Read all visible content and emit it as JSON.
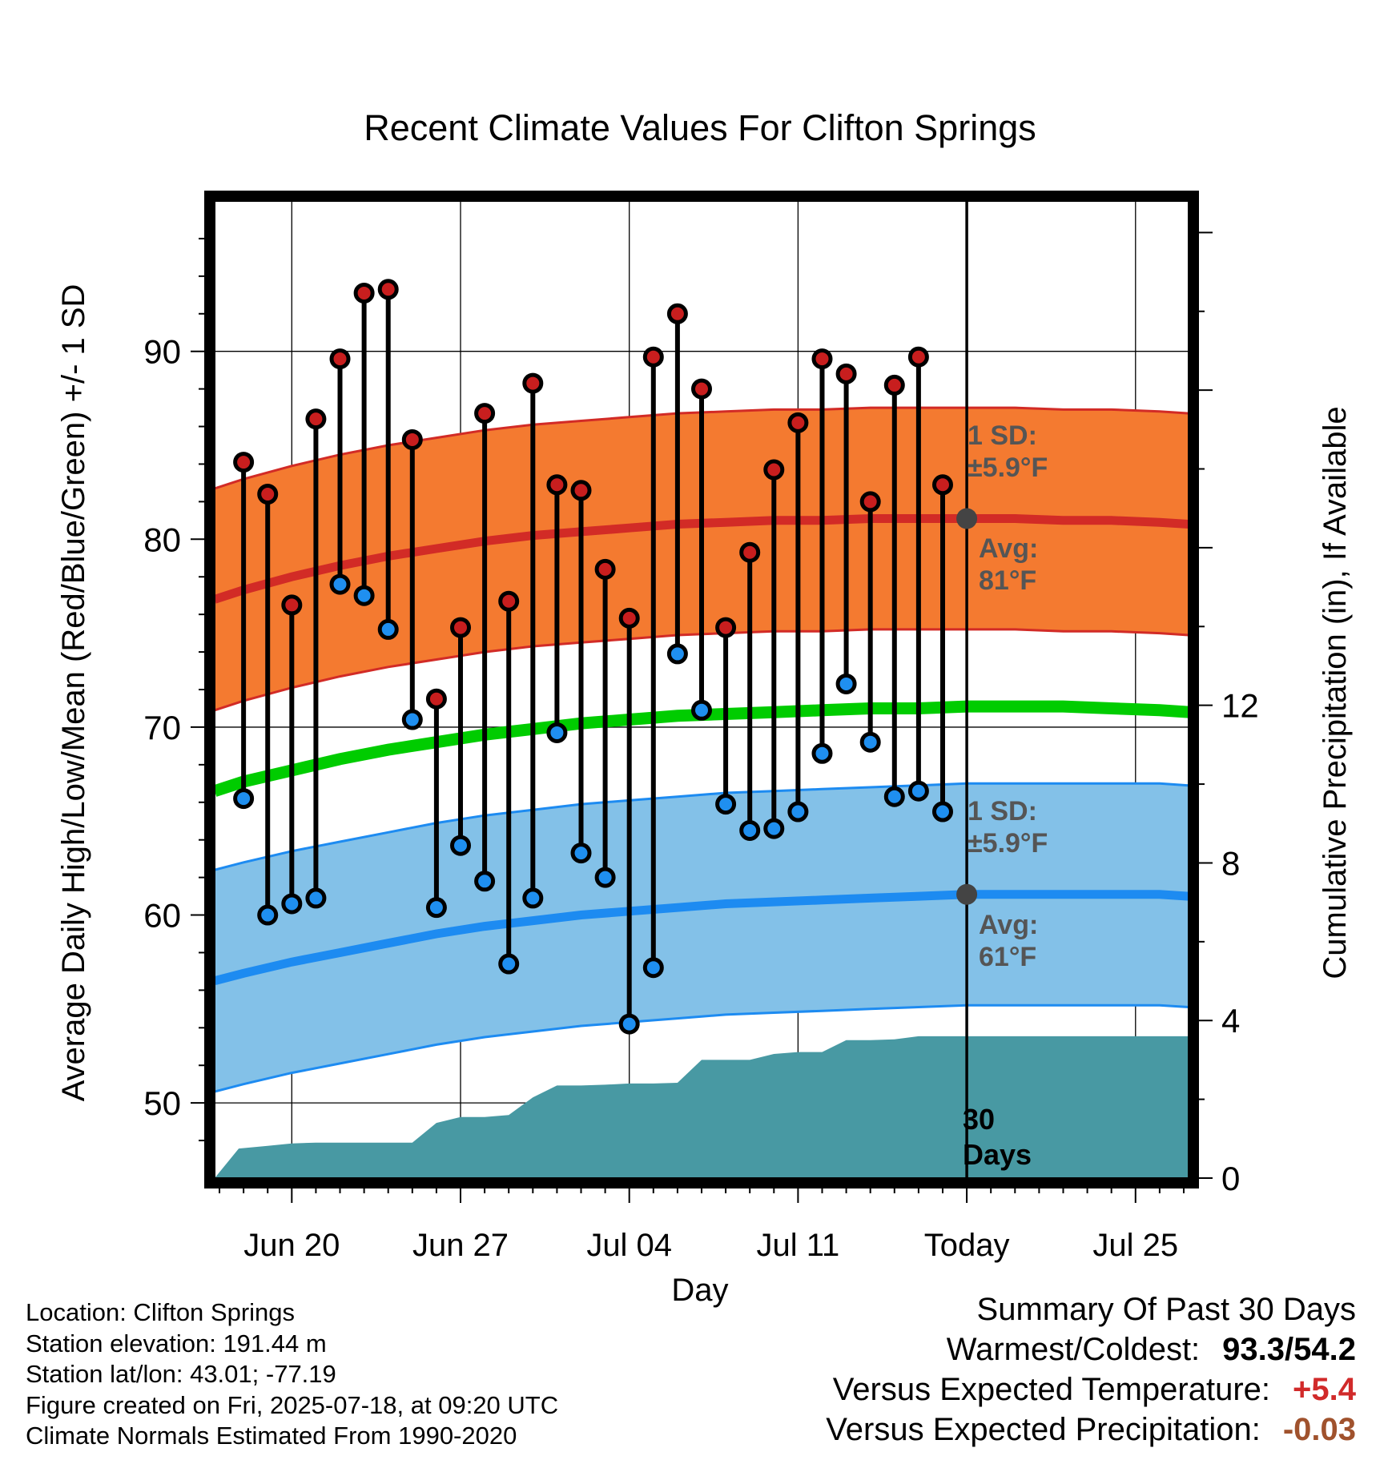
{
  "chart_data": {
    "type": "line",
    "title": "Recent Climate Values For Clifton Springs",
    "xlabel": "Day",
    "ylabel_left": "Average Daily High/Low/Mean (Red/Blue/Green) +/- 1 SD",
    "ylabel_right": "Cumulative Precipitation (in), If Available",
    "y_left_range": [
      46,
      98
    ],
    "y_right_range": [
      0,
      24.8
    ],
    "x_range": [
      -3.2,
      37.2
    ],
    "y_left_ticks": [
      "50",
      "60",
      "70",
      "80",
      "90"
    ],
    "y_right_ticks": [
      "0",
      "4",
      "8",
      "12"
    ],
    "x_tick_labels": [
      {
        "day": 0,
        "label": "Jun 20"
      },
      {
        "day": 7,
        "label": "Jun 27"
      },
      {
        "day": 14,
        "label": "Jul 04"
      },
      {
        "day": 21,
        "label": "Jul 11"
      },
      {
        "day": 28,
        "label": "Today"
      },
      {
        "day": 35,
        "label": "Jul 25"
      }
    ],
    "grid": true,
    "today_day": 28,
    "daily_obs": {
      "day": [
        -2,
        -1,
        0,
        1,
        2,
        3,
        4,
        5,
        6,
        7,
        8,
        9,
        10,
        11,
        12,
        13,
        14,
        15,
        16,
        17,
        18,
        19,
        20,
        21,
        22,
        23,
        24,
        25,
        26,
        27
      ],
      "high": [
        84.1,
        82.4,
        76.5,
        86.4,
        89.6,
        93.1,
        93.3,
        85.3,
        71.5,
        75.3,
        86.7,
        76.7,
        88.3,
        82.9,
        82.6,
        78.4,
        75.8,
        89.7,
        92.0,
        88.0,
        75.3,
        79.3,
        83.7,
        86.2,
        89.6,
        88.8,
        82.0,
        88.2,
        89.7,
        82.9
      ],
      "low": [
        66.2,
        60.0,
        60.6,
        60.9,
        77.6,
        77.0,
        75.2,
        70.4,
        60.4,
        63.7,
        61.8,
        57.4,
        60.9,
        69.7,
        63.3,
        62.0,
        54.2,
        57.2,
        73.9,
        70.9,
        65.9,
        64.5,
        64.6,
        65.5,
        68.6,
        72.3,
        69.2,
        66.3,
        66.6,
        65.5
      ]
    },
    "normals": {
      "day": [
        -3.2,
        -2,
        0,
        2,
        4,
        6,
        8,
        10,
        12,
        14,
        16,
        18,
        20,
        22,
        24,
        26,
        28,
        30,
        32,
        34,
        36,
        37.2
      ],
      "high_avg": [
        76.8,
        77.3,
        78.0,
        78.6,
        79.1,
        79.5,
        79.9,
        80.2,
        80.4,
        80.6,
        80.8,
        80.9,
        81.0,
        81.0,
        81.1,
        81.1,
        81.1,
        81.1,
        81.0,
        81.0,
        80.9,
        80.8
      ],
      "low_avg": [
        56.5,
        56.9,
        57.5,
        58.0,
        58.5,
        59.0,
        59.4,
        59.7,
        60.0,
        60.2,
        60.4,
        60.6,
        60.7,
        60.8,
        60.9,
        61.0,
        61.1,
        61.1,
        61.1,
        61.1,
        61.1,
        61.0
      ],
      "mean_avg": [
        66.6,
        67.1,
        67.7,
        68.3,
        68.8,
        69.2,
        69.6,
        69.9,
        70.2,
        70.4,
        70.6,
        70.7,
        70.8,
        70.9,
        71.0,
        71.0,
        71.1,
        71.1,
        71.1,
        71.0,
        70.9,
        70.8
      ]
    },
    "sd_f": 5.9,
    "precip_cumulative": {
      "day": [
        -3.2,
        -2.2,
        -1,
        0,
        1,
        2,
        3,
        4,
        5,
        6,
        7,
        8,
        9,
        10,
        11,
        12,
        13,
        14,
        15,
        16,
        17,
        18,
        19,
        20,
        21,
        22,
        23,
        24,
        25,
        26,
        27,
        28,
        37.2
      ],
      "value": [
        0,
        0.75,
        0.82,
        0.88,
        0.9,
        0.9,
        0.9,
        0.9,
        0.9,
        1.4,
        1.55,
        1.55,
        1.6,
        2.05,
        2.35,
        2.35,
        2.37,
        2.4,
        2.4,
        2.42,
        3.0,
        3.0,
        3.0,
        3.15,
        3.2,
        3.2,
        3.5,
        3.5,
        3.52,
        3.6,
        3.6,
        3.6,
        3.6
      ]
    },
    "annotations": {
      "high_sd_label": [
        "1 SD:",
        "±5.9°F"
      ],
      "high_avg_label": [
        "Avg:",
        "81°F"
      ],
      "low_sd_label": [
        "1 SD:",
        "±5.9°F"
      ],
      "low_avg_label": [
        "Avg:",
        "61°F"
      ],
      "days_label": [
        "30",
        "Days"
      ]
    }
  },
  "footer": {
    "location": "Location: Clifton Springs",
    "elevation": "Station elevation: 191.44 m",
    "latlon": "Station lat/lon: 43.01; -77.19",
    "created": "Figure created on Fri, 2025-07-18, at 09:20 UTC",
    "normals": "Climate Normals Estimated From 1990-2020"
  },
  "summary": {
    "title": "Summary Of Past 30 Days",
    "warmest_label": "Warmest/Coldest:",
    "warmest_value": "93.3/54.2",
    "temp_label": "Versus Expected Temperature:",
    "temp_value": "+5.4",
    "precip_label": "Versus Expected Precipitation:",
    "precip_value": "-0.03"
  },
  "colors": {
    "high_band": "#f47a30",
    "high_line": "#d22b26",
    "low_band": "#83c1e8",
    "low_line": "#1d8bf1",
    "mean_line": "#00cc00",
    "precip_fill": "#4899a3",
    "high_marker": "#c81e1e",
    "low_marker": "#1f8ff0",
    "label_gray": "#555555",
    "temp_value": "#d12a2a",
    "precip_value": "#a0522d"
  }
}
